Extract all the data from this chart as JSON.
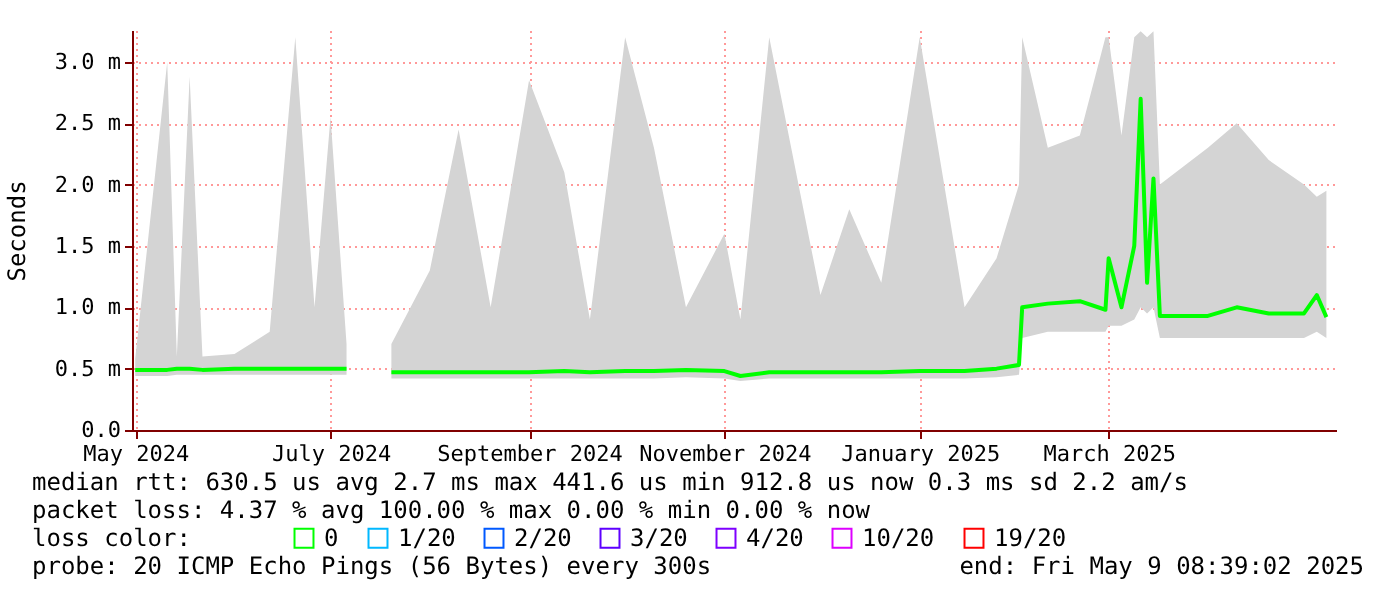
{
  "chart_data": {
    "type": "line",
    "ylabel": "Seconds",
    "legend_title": "loss color:",
    "legend": "bottom left",
    "grid": true,
    "marker": "none",
    "line_style": "solid",
    "xlim": [
      "2024-04-30",
      "2025-05-11"
    ],
    "xticks": [
      {
        "value": "2024-05",
        "label": "May 2024"
      },
      {
        "value": "2024-07",
        "label": "July 2024"
      },
      {
        "value": "2024-09",
        "label": "September 2024"
      },
      {
        "value": "2024-11",
        "label": "November 2024"
      },
      {
        "value": "2025-01",
        "label": "January 2025"
      },
      {
        "value": "2025-03",
        "label": "March 2025"
      }
    ],
    "ylim": [
      0,
      3.26
    ],
    "yticks": [
      {
        "value": 0,
        "label": "0.0"
      },
      {
        "value": 0.5,
        "label": "0.5 m"
      },
      {
        "value": 1.0,
        "label": "1.0 m"
      },
      {
        "value": 1.5,
        "label": "1.5 m"
      },
      {
        "value": 2.0,
        "label": "2.0 m"
      },
      {
        "value": 2.5,
        "label": "2.5 m"
      },
      {
        "value": 3.0,
        "label": "3.0 m"
      }
    ],
    "x": [
      "2024-05-01",
      "2024-05-11",
      "2024-05-14",
      "2024-05-18",
      "2024-05-22",
      "2024-06-01",
      "2024-06-12",
      "2024-06-20",
      "2024-06-26",
      "2024-07-01",
      "2024-07-06",
      "2024-07-07",
      "2024-07-20",
      "2024-08-01",
      "2024-08-10",
      "2024-08-20",
      "2024-09-01",
      "2024-09-12",
      "2024-09-20",
      "2024-10-01",
      "2024-10-10",
      "2024-10-20",
      "2024-11-01",
      "2024-11-06",
      "2024-11-15",
      "2024-12-01",
      "2024-12-10",
      "2024-12-20",
      "2025-01-01",
      "2025-01-15",
      "2025-01-25",
      "2025-02-01",
      "2025-02-02",
      "2025-02-10",
      "2025-02-20",
      "2025-02-28",
      "2025-03-01",
      "2025-03-05",
      "2025-03-09",
      "2025-03-11",
      "2025-03-13",
      "2025-03-15",
      "2025-03-17",
      "2025-04-01",
      "2025-04-10",
      "2025-04-20",
      "2025-05-01",
      "2025-05-05",
      "2025-05-08"
    ],
    "series": [
      {
        "name": "0",
        "color": "#00ff00",
        "values": [
          0.49,
          0.49,
          0.5,
          0.5,
          0.49,
          0.5,
          0.5,
          0.5,
          0.5,
          0.5,
          0.5,
          null,
          0.47,
          0.47,
          0.47,
          0.47,
          0.47,
          0.48,
          0.47,
          0.48,
          0.48,
          0.49,
          0.48,
          0.44,
          0.47,
          0.47,
          0.47,
          0.47,
          0.48,
          0.48,
          0.5,
          0.53,
          1.0,
          1.03,
          1.05,
          0.98,
          1.4,
          1.0,
          1.5,
          2.7,
          1.2,
          2.05,
          0.93,
          0.93,
          1.0,
          0.95,
          0.95,
          1.1,
          0.92
        ],
        "lower": [
          0.44,
          0.44,
          0.45,
          0.45,
          0.45,
          0.45,
          0.45,
          0.45,
          0.45,
          0.45,
          0.45,
          null,
          0.42,
          0.42,
          0.42,
          0.42,
          0.42,
          0.42,
          0.42,
          0.42,
          0.42,
          0.43,
          0.42,
          0.4,
          0.42,
          0.42,
          0.42,
          0.42,
          0.42,
          0.42,
          0.43,
          0.45,
          0.75,
          0.8,
          0.8,
          0.8,
          0.85,
          0.85,
          0.9,
          1.0,
          0.95,
          1.0,
          0.75,
          0.75,
          0.75,
          0.75,
          0.75,
          0.8,
          0.75
        ],
        "upper": [
          0.58,
          3.0,
          0.6,
          2.88,
          0.6,
          0.62,
          0.8,
          3.2,
          1.0,
          2.55,
          0.7,
          null,
          0.7,
          1.3,
          2.45,
          1.0,
          2.85,
          2.1,
          0.9,
          3.2,
          2.3,
          1.0,
          1.6,
          0.9,
          3.2,
          1.1,
          1.8,
          1.2,
          3.2,
          1.0,
          1.4,
          2.0,
          3.2,
          2.3,
          2.4,
          3.2,
          3.2,
          2.4,
          3.2,
          3.25,
          3.2,
          3.25,
          2.0,
          2.3,
          2.5,
          2.2,
          2.0,
          1.9,
          1.95
        ]
      },
      {
        "name": "1/20",
        "color": "#00b8ff",
        "values": [
          null,
          null,
          null,
          null,
          null,
          null,
          null,
          null,
          null,
          null,
          null,
          null,
          null,
          null,
          null,
          null,
          null,
          null,
          null,
          null,
          null,
          null,
          null,
          null,
          null,
          null,
          null,
          null,
          null,
          null,
          null,
          null,
          null,
          null,
          null,
          null,
          null,
          null,
          null,
          null,
          null,
          null,
          null,
          null,
          null,
          null,
          null,
          null,
          null
        ]
      },
      {
        "name": "2/20",
        "color": "#0059ff",
        "values": [
          null,
          null,
          null,
          null,
          null,
          null,
          null,
          null,
          null,
          null,
          null,
          null,
          null,
          null,
          null,
          null,
          null,
          null,
          null,
          null,
          null,
          null,
          null,
          null,
          null,
          null,
          null,
          null,
          null,
          null,
          null,
          null,
          null,
          null,
          null,
          null,
          null,
          null,
          null,
          null,
          null,
          null,
          null,
          null,
          null,
          null,
          null,
          null,
          null
        ]
      },
      {
        "name": "3/20",
        "color": "#5e00ff",
        "values": [
          null,
          null,
          null,
          null,
          null,
          null,
          null,
          null,
          null,
          null,
          null,
          null,
          null,
          null,
          null,
          null,
          null,
          null,
          null,
          null,
          null,
          null,
          null,
          null,
          null,
          null,
          null,
          null,
          null,
          null,
          null,
          null,
          null,
          null,
          null,
          null,
          null,
          null,
          null,
          null,
          null,
          null,
          null,
          null,
          null,
          null,
          null,
          null,
          null
        ]
      },
      {
        "name": "4/20",
        "color": "#7e00ff",
        "values": [
          null,
          null,
          null,
          null,
          null,
          null,
          null,
          null,
          null,
          null,
          null,
          null,
          null,
          null,
          null,
          null,
          null,
          null,
          null,
          null,
          null,
          null,
          null,
          null,
          null,
          null,
          null,
          null,
          null,
          null,
          null,
          null,
          null,
          null,
          null,
          null,
          null,
          null,
          null,
          null,
          null,
          null,
          null,
          null,
          null,
          null,
          null,
          null,
          null
        ]
      },
      {
        "name": "10/20",
        "color": "#dd00ff",
        "values": [
          null,
          null,
          null,
          null,
          null,
          null,
          null,
          null,
          null,
          null,
          null,
          null,
          null,
          null,
          null,
          null,
          null,
          null,
          null,
          null,
          null,
          null,
          null,
          null,
          null,
          null,
          null,
          null,
          null,
          null,
          null,
          null,
          null,
          null,
          null,
          null,
          null,
          null,
          null,
          null,
          null,
          null,
          null,
          null,
          null,
          null,
          null,
          null,
          null
        ]
      },
      {
        "name": "19/20",
        "color": "#ff0000",
        "values": [
          null,
          null,
          null,
          null,
          null,
          null,
          null,
          null,
          null,
          null,
          null,
          null,
          null,
          null,
          null,
          null,
          null,
          null,
          null,
          null,
          null,
          null,
          null,
          null,
          null,
          null,
          null,
          null,
          null,
          null,
          null,
          null,
          null,
          null,
          null,
          null,
          null,
          null,
          null,
          null,
          null,
          null,
          null,
          null,
          null,
          null,
          null,
          null,
          null
        ]
      }
    ],
    "annotations": [
      "median rtt:  630.5 us avg  2.7 ms max  441.6 us min  912.8 us now  0.3 ms sd  2.2   am/s",
      "packet loss: 4.37 % avg  100.00 % max  0.00 % min  0.00 % now",
      "probe:       20 ICMP Echo Pings (56 Bytes) every 300s",
      "end: Fri May  9 08:39:02 2025"
    ]
  }
}
